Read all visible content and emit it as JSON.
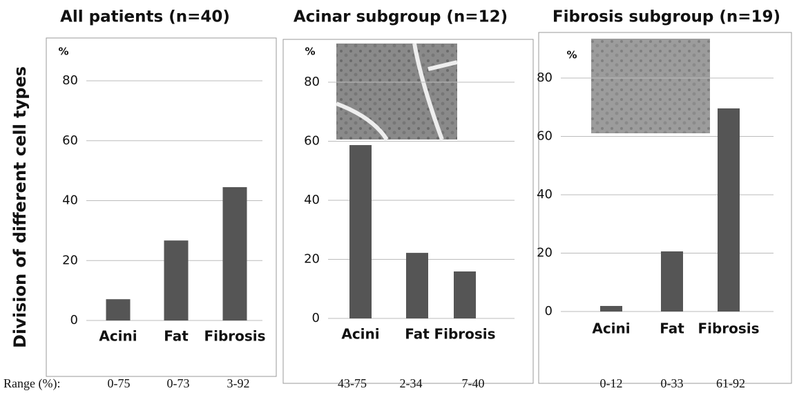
{
  "y_label": "Division of different cell types",
  "range_label": "Range (%):",
  "chart_data": [
    {
      "type": "bar",
      "title": "All patients (n=40)",
      "y_unit": "%",
      "categories": [
        "Acini",
        "Fat",
        "Fibrosis"
      ],
      "values": [
        7.1,
        26.7,
        44.5
      ],
      "ranges": [
        "0-75",
        "0-73",
        "3-92"
      ],
      "color": "#555555",
      "ylim": [
        0,
        80
      ],
      "yticks": [
        0,
        20,
        40,
        60,
        80
      ],
      "grid": true
    },
    {
      "type": "bar",
      "title": "Acinar subgroup (n=12)",
      "y_unit": "%",
      "categories": [
        "Acini",
        "Fat",
        "Fibrosis"
      ],
      "values": [
        58.7,
        22.2,
        15.9
      ],
      "ranges": [
        "43-75",
        "2-34",
        "7-40"
      ],
      "color": "#555555",
      "ylim": [
        0,
        80
      ],
      "yticks": [
        0,
        20,
        40,
        60,
        80
      ],
      "grid": true
    },
    {
      "type": "bar",
      "title": "Fibrosis subgroup (n=19)",
      "y_unit": "%",
      "categories": [
        "Acini",
        "Fat",
        "Fibrosis"
      ],
      "values": [
        1.9,
        20.6,
        69.6
      ],
      "ranges": [
        "0-12",
        "0-33",
        "61-92"
      ],
      "color": "#555555",
      "ylim": [
        0,
        80
      ],
      "yticks": [
        0,
        20,
        40,
        60,
        80
      ],
      "grid": true
    }
  ]
}
